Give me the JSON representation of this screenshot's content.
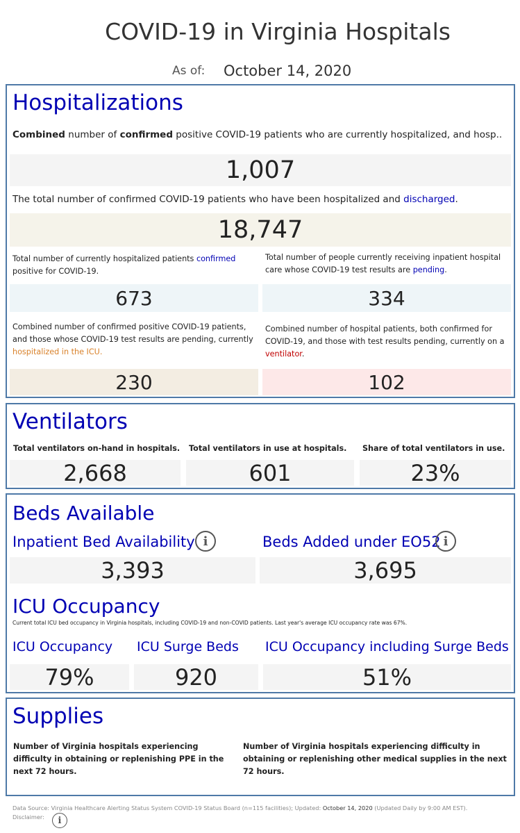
{
  "header": {
    "title": "COVID-19 in Virginia Hospitals",
    "as_of_label": "As of:",
    "as_of_date": "October 14, 2020"
  },
  "hospitalizations": {
    "title": "Hospitalizations",
    "combined": {
      "desc_p1": "Combined",
      "desc_p2": " number of ",
      "desc_p3": "confirmed",
      "desc_p4": " positive COVID-19 patients who are currently hospitalized, and hosp..",
      "value": "1,007"
    },
    "discharged": {
      "desc_p1": "The total number of confirmed COVID-19 patients who have been hospitalized and ",
      "desc_p2": "discharged",
      "desc_p3": ".",
      "value": "18,747"
    },
    "confirmed": {
      "desc_p1": "Total number of currently hospitalized patients ",
      "desc_p2": "confirmed",
      "desc_p3": " positive for COVID-19.",
      "value": "673"
    },
    "pending": {
      "desc_p1": "Total number of people currently receiving inpatient hospital care whose COVID-19 test results are ",
      "desc_p2": "pending",
      "desc_p3": ".",
      "value": "334"
    },
    "icu": {
      "desc_p1": "Combined number of confirmed positive COVID-19 patients, and those whose COVID-19 test results are pending, currently ",
      "desc_p2": "hospitalized in the ICU.",
      "value": "230"
    },
    "ventilator": {
      "desc_p1": "Combined number of hospital patients, both confirmed for COVID-19, and those with test results pending, currently on a ",
      "desc_p2": "ventilator",
      "desc_p3": ".",
      "value": "102"
    }
  },
  "ventilators": {
    "title": "Ventilators",
    "on_hand": {
      "label": "Total ventilators on-hand in hospitals.",
      "value": "2,668"
    },
    "in_use": {
      "label": "Total ventilators in use at hospitals.",
      "value": "601"
    },
    "share": {
      "label": "Share of total ventilators in use.",
      "value": "23%"
    }
  },
  "beds": {
    "title": "Beds Available",
    "inpatient": {
      "label": "Inpatient Bed Availability",
      "value": "3,393"
    },
    "eo52": {
      "label": "Beds Added under EO52",
      "value": "3,695"
    },
    "icu_title": "ICU Occupancy",
    "icu_desc": "Current total ICU bed occupancy in Virginia hospitals, including COVID-19 and non-COVID patients. Last year's average ICU occupancy rate was 67%.",
    "icu_occupancy": {
      "label": "ICU Occupancy",
      "value": "79%"
    },
    "icu_surge": {
      "label": "ICU Surge Beds",
      "value": "920"
    },
    "icu_incl_surge": {
      "label": "ICU Occupancy including Surge Beds",
      "value": "51%"
    }
  },
  "supplies": {
    "title": "Supplies",
    "ppe_desc": "Number of Virginia hospitals experiencing difficulty in obtaining or replenishing PPE in the next 72 hours.",
    "other_desc": "Number of Virginia hospitals experiencing difficulty in obtaining or replenishing other medical supplies in the next 72 hours."
  },
  "footer": {
    "source_p1": "Data Source: Virginia Healthcare Alerting Status System COVID-19 Status Board (n=115 facilities); Updated: ",
    "source_date": "October 14, 2020",
    "source_p2": " (Updated Daily by 9:00 AM EST).",
    "disclaimer": "Disclaimer:"
  },
  "icons": {
    "info": "info-icon"
  },
  "colors": {
    "accent_blue": "#0000b3",
    "panel_border": "#4e79a7",
    "icu_orange": "#d9822b",
    "ventilator_red": "#c00000",
    "box_gray": "#f4f4f4",
    "box_beige": "#f5f3ea",
    "box_lightblue": "#eef5f8",
    "box_tan": "#f3ede2",
    "box_pink": "#fde8e8"
  }
}
